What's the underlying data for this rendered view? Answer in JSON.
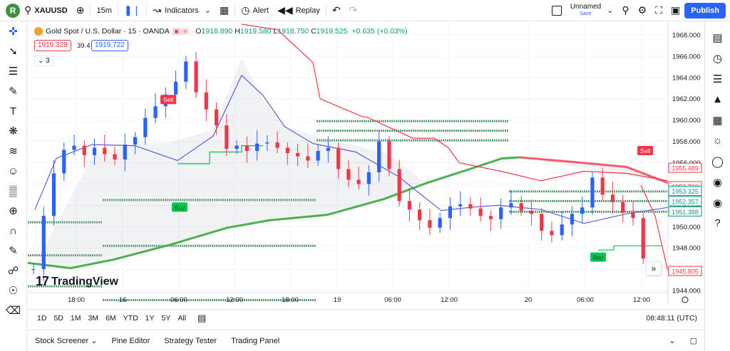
{
  "topbar": {
    "avatar_letter": "R",
    "symbol": "XAUUSD",
    "interval": "15m",
    "indicators_label": "Indicators",
    "alert_label": "Alert",
    "replay_label": "Replay",
    "layout_name": "Unnamed",
    "save_label": "Save",
    "publish_label": "Publish"
  },
  "legend": {
    "title": "Gold Spot / U.S. Dollar · 15 · OANDA",
    "o_label": "O",
    "o_value": "1918.890",
    "h_label": "H",
    "h_value": "1919.580",
    "l_label": "L",
    "l_value": "1918.750",
    "c_label": "C",
    "c_value": "1919.525",
    "change": "+0.635 (+0.03%)",
    "sell_price": "1919.328",
    "spread": "39.4",
    "buy_price": "1919.722",
    "indicator_count": "3"
  },
  "chart_data": {
    "type": "candlestick",
    "symbol": "Gold Spot / U.S. Dollar",
    "interval": "15",
    "source": "OANDA",
    "y_ticks": [
      "1968.000",
      "1966.000",
      "1964.000",
      "1962.000",
      "1960.000",
      "1958.000",
      "1956.000",
      "1954.000",
      "1952.000",
      "1950.000",
      "1948.000",
      "1946.000",
      "1944.000"
    ],
    "ylim": [
      1942.6,
      1969.2
    ],
    "x_ticks": [
      "18:00",
      "16",
      "06:00",
      "12:00",
      "18:00",
      "19",
      "06:00",
      "12:00",
      "20",
      "06:00",
      "12:00"
    ],
    "price_labels": [
      {
        "value": "1955.489",
        "color": "#f23645"
      },
      {
        "value": "1953.760",
        "color": "#f23645"
      },
      {
        "value": "1953.325",
        "color": "#089981"
      },
      {
        "value": "1952.357",
        "color": "#089981"
      },
      {
        "value": "1951.388",
        "color": "#089981"
      },
      {
        "value": "1945.805",
        "color": "#f23645"
      }
    ],
    "signals": [
      {
        "label": "Sell",
        "color": "#f23645"
      },
      {
        "label": "Buy",
        "color": "#00c853"
      },
      {
        "label": "Buy",
        "color": "#00c853"
      },
      {
        "label": "Sell",
        "color": "#f23645"
      }
    ],
    "colors": {
      "up": "#2962ff",
      "down": "#f23645",
      "ma_long": "#4caf50",
      "trail_sell": "#f23645",
      "trail_buy": "#00c853"
    }
  },
  "watermark": {
    "logo": "17",
    "name": "TradingView"
  },
  "timeframes": [
    "1D",
    "5D",
    "1M",
    "3M",
    "6M",
    "YTD",
    "1Y",
    "5Y",
    "All"
  ],
  "clock": "08:48:11 (UTC)",
  "bottom_tabs": [
    "Stock Screener",
    "Pine Editor",
    "Strategy Tester",
    "Trading Panel"
  ]
}
